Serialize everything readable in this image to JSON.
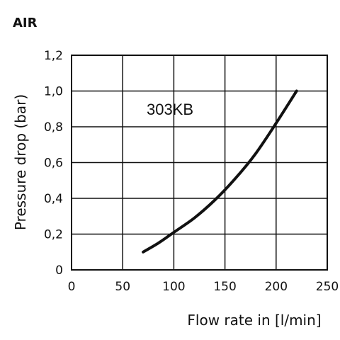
{
  "chart_data": {
    "type": "line",
    "title": "AIR",
    "xlabel": "Flow rate in [l/min]",
    "ylabel": "Pressure drop (bar)",
    "xlim": [
      0,
      250
    ],
    "ylim": [
      0,
      1.2
    ],
    "x_ticks": [
      "0",
      "50",
      "100",
      "150",
      "200",
      "250"
    ],
    "y_ticks": [
      "0",
      "0,2",
      "0,4",
      "0,6",
      "0,8",
      "1,0",
      "1,2"
    ],
    "grid": true,
    "series": [
      {
        "name": "303KB",
        "points": [
          [
            70,
            0.1
          ],
          [
            85,
            0.15
          ],
          [
            100,
            0.21
          ],
          [
            120,
            0.29
          ],
          [
            140,
            0.39
          ],
          [
            160,
            0.51
          ],
          [
            180,
            0.65
          ],
          [
            200,
            0.82
          ],
          [
            220,
            1.0
          ]
        ]
      }
    ]
  }
}
